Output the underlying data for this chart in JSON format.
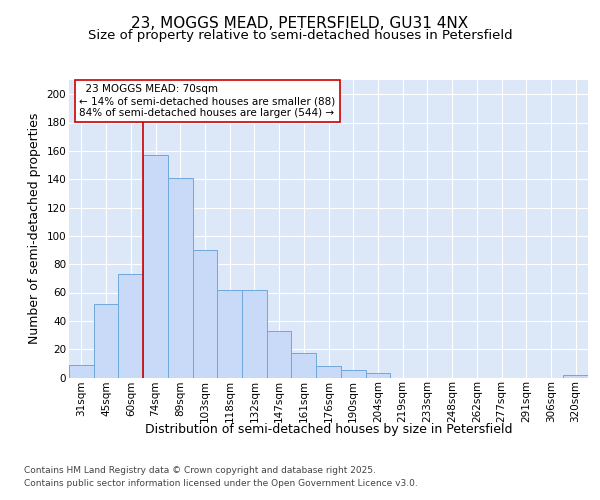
{
  "title": "23, MOGGS MEAD, PETERSFIELD, GU31 4NX",
  "subtitle": "Size of property relative to semi-detached houses in Petersfield",
  "xlabel": "Distribution of semi-detached houses by size in Petersfield",
  "ylabel": "Number of semi-detached properties",
  "categories": [
    "31sqm",
    "45sqm",
    "60sqm",
    "74sqm",
    "89sqm",
    "103sqm",
    "118sqm",
    "132sqm",
    "147sqm",
    "161sqm",
    "176sqm",
    "190sqm",
    "204sqm",
    "219sqm",
    "233sqm",
    "248sqm",
    "262sqm",
    "277sqm",
    "291sqm",
    "306sqm",
    "320sqm"
  ],
  "values": [
    9,
    52,
    73,
    157,
    141,
    90,
    62,
    62,
    33,
    17,
    8,
    5,
    3,
    0,
    0,
    0,
    0,
    0,
    0,
    0,
    2
  ],
  "bar_color": "#c9daf8",
  "bar_edge_color": "#6fa8dc",
  "property_size_label": "23 MOGGS MEAD: 70sqm",
  "pct_smaller": 14,
  "count_smaller": 88,
  "pct_larger": 84,
  "count_larger": 544,
  "vline_x": 2.5,
  "annotation_box_color": "#cc0000",
  "ylim": [
    0,
    210
  ],
  "yticks": [
    0,
    20,
    40,
    60,
    80,
    100,
    120,
    140,
    160,
    180,
    200
  ],
  "background_color": "#dce8f8",
  "grid_color": "#ffffff",
  "footer_line1": "Contains HM Land Registry data © Crown copyright and database right 2025.",
  "footer_line2": "Contains public sector information licensed under the Open Government Licence v3.0.",
  "title_fontsize": 11,
  "subtitle_fontsize": 9.5,
  "axis_label_fontsize": 9,
  "tick_fontsize": 7.5,
  "annotation_fontsize": 7.5,
  "footer_fontsize": 6.5
}
